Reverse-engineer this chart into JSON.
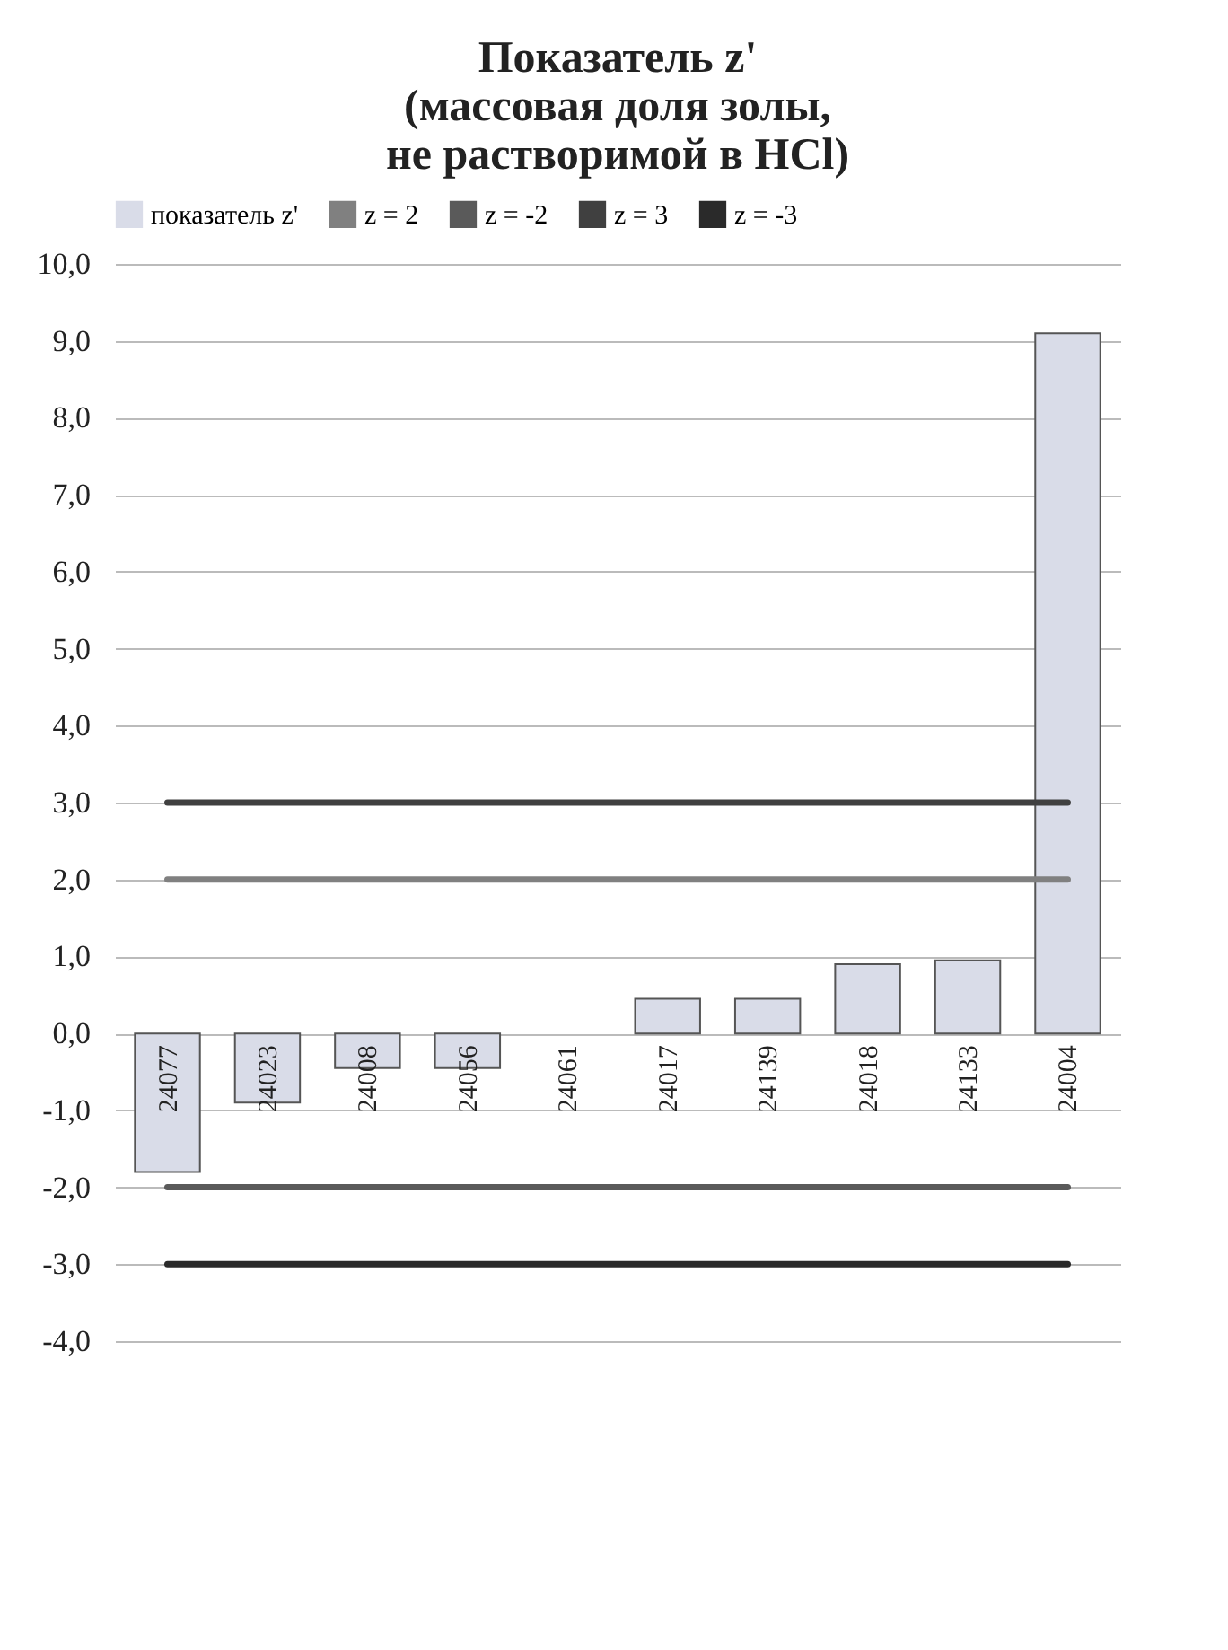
{
  "chart_data": {
    "type": "bar",
    "title": "Показатель z'\n(массовая доля золы,\nне растворимой в HCl)",
    "categories": [
      "24077",
      "24023",
      "24008",
      "24056",
      "24061",
      "24017",
      "24139",
      "24018",
      "24133",
      "24004"
    ],
    "series": [
      {
        "name": "показатель z'",
        "color": "#d9dce8",
        "values": [
          -1.8,
          -0.9,
          -0.45,
          -0.45,
          0,
          0.45,
          0.45,
          0.9,
          0.95,
          9.1
        ]
      },
      {
        "name": "z = 2",
        "type": "line",
        "color": "#808080",
        "values": [
          2,
          2,
          2,
          2,
          2,
          2,
          2,
          2,
          2,
          2
        ]
      },
      {
        "name": "z = -2",
        "type": "line",
        "color": "#5a5a5a",
        "values": [
          -2,
          -2,
          -2,
          -2,
          -2,
          -2,
          -2,
          -2,
          -2,
          -2
        ]
      },
      {
        "name": "z = 3",
        "type": "line",
        "color": "#404040",
        "values": [
          3,
          3,
          3,
          3,
          3,
          3,
          3,
          3,
          3,
          3
        ]
      },
      {
        "name": "z = -3",
        "type": "line",
        "color": "#2a2a2a",
        "values": [
          -3,
          -3,
          -3,
          -3,
          -3,
          -3,
          -3,
          -3,
          -3,
          -3
        ]
      }
    ],
    "ylim": [
      -4,
      10
    ],
    "yticks": [
      {
        "value": -4,
        "label": "-4,0"
      },
      {
        "value": -3,
        "label": "-3,0"
      },
      {
        "value": -2,
        "label": "-2,0"
      },
      {
        "value": -1,
        "label": "-1,0"
      },
      {
        "value": 0,
        "label": "0,0"
      },
      {
        "value": 1,
        "label": "1,0"
      },
      {
        "value": 2,
        "label": "2,0"
      },
      {
        "value": 3,
        "label": "3,0"
      },
      {
        "value": 4,
        "label": "4,0"
      },
      {
        "value": 5,
        "label": "5,0"
      },
      {
        "value": 6,
        "label": "6,0"
      },
      {
        "value": 7,
        "label": "7,0"
      },
      {
        "value": 8,
        "label": "8,0"
      },
      {
        "value": 9,
        "label": "9,0"
      },
      {
        "value": 10,
        "label": "10,0"
      }
    ],
    "grid": "y",
    "legend": "top"
  }
}
